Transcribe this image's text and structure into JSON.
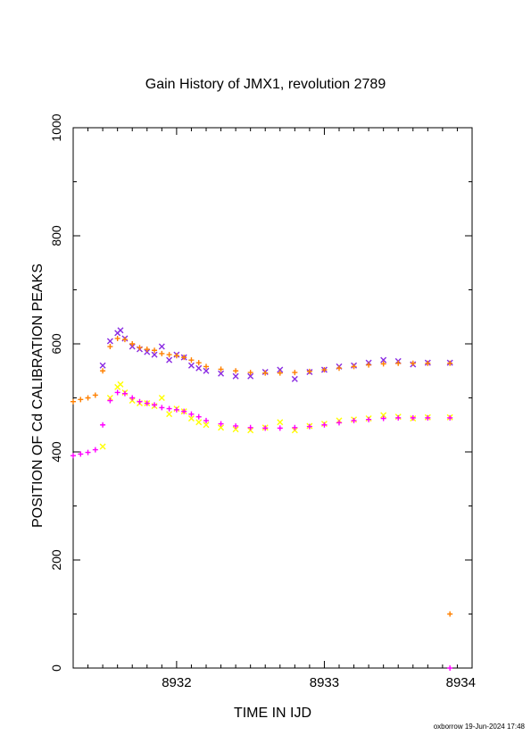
{
  "chart_data": {
    "type": "scatter",
    "title": "Gain History of JMX1, revolution 2789",
    "xlabel": "TIME IN IJD",
    "ylabel": "POSITION OF Cd CALIBRATION PEAKS",
    "xlim": [
      8931.3,
      8934.0
    ],
    "ylim": [
      0,
      1000
    ],
    "x_ticks": [
      "8932",
      "8933",
      "8934"
    ],
    "y_ticks": [
      "0",
      "200",
      "400",
      "600",
      "800",
      "1000"
    ],
    "grid": false,
    "series": [
      {
        "color": "#8a2be2",
        "marker": "x",
        "x": [
          8931.5,
          8931.55,
          8931.6,
          8931.62,
          8931.65,
          8931.7,
          8931.75,
          8931.8,
          8931.85,
          8931.9,
          8931.95,
          8932.0,
          8932.05,
          8932.1,
          8932.15,
          8932.2,
          8932.3,
          8932.4,
          8932.5,
          8932.6,
          8932.7,
          8932.8,
          8932.9,
          8933.0,
          8933.1,
          8933.2,
          8933.3,
          8933.4,
          8933.5,
          8933.6,
          8933.7,
          8933.85
        ],
        "y": [
          560,
          605,
          620,
          625,
          610,
          595,
          590,
          585,
          580,
          595,
          570,
          580,
          575,
          560,
          555,
          550,
          545,
          540,
          540,
          548,
          552,
          535,
          548,
          552,
          558,
          560,
          565,
          570,
          568,
          562,
          565,
          565
        ]
      },
      {
        "color": "#ff8000",
        "marker": "+",
        "x": [
          8931.3,
          8931.35,
          8931.4,
          8931.45,
          8931.5,
          8931.55,
          8931.6,
          8931.65,
          8931.7,
          8931.75,
          8931.8,
          8931.85,
          8931.9,
          8931.95,
          8932.0,
          8932.05,
          8932.1,
          8932.15,
          8932.2,
          8932.3,
          8932.4,
          8932.5,
          8932.6,
          8932.7,
          8932.8,
          8932.9,
          8933.0,
          8933.1,
          8933.2,
          8933.3,
          8933.4,
          8933.5,
          8933.6,
          8933.7,
          8933.85,
          8933.85
        ],
        "y": [
          493,
          497,
          500,
          505,
          550,
          595,
          610,
          608,
          600,
          593,
          590,
          588,
          582,
          580,
          578,
          575,
          570,
          565,
          558,
          553,
          550,
          547,
          546,
          546,
          547,
          549,
          552,
          555,
          558,
          561,
          563,
          564,
          564,
          564,
          564,
          100
        ]
      },
      {
        "color": "#ffff00",
        "marker": "x",
        "x": [
          8931.5,
          8931.55,
          8931.6,
          8931.62,
          8931.65,
          8931.7,
          8931.75,
          8931.8,
          8931.85,
          8931.9,
          8931.95,
          8932.0,
          8932.05,
          8932.1,
          8932.15,
          8932.2,
          8932.3,
          8932.4,
          8932.5,
          8932.6,
          8932.7,
          8932.8,
          8932.9,
          8933.0,
          8933.1,
          8933.2,
          8933.3,
          8933.4,
          8933.5,
          8933.6,
          8933.7,
          8933.85
        ],
        "y": [
          410,
          500,
          520,
          525,
          510,
          495,
          490,
          490,
          485,
          500,
          470,
          480,
          475,
          462,
          455,
          450,
          445,
          442,
          440,
          445,
          455,
          440,
          448,
          452,
          458,
          460,
          462,
          468,
          465,
          462,
          464,
          464
        ]
      },
      {
        "color": "#ff00ff",
        "marker": "+",
        "x": [
          8931.3,
          8931.35,
          8931.4,
          8931.45,
          8931.5,
          8931.55,
          8931.6,
          8931.65,
          8931.7,
          8931.75,
          8931.8,
          8931.85,
          8931.9,
          8931.95,
          8932.0,
          8932.05,
          8932.1,
          8932.15,
          8932.2,
          8932.3,
          8932.4,
          8932.5,
          8932.6,
          8932.7,
          8932.8,
          8932.9,
          8933.0,
          8933.1,
          8933.2,
          8933.3,
          8933.4,
          8933.5,
          8933.6,
          8933.7,
          8933.85,
          8933.85
        ],
        "y": [
          393,
          396,
          399,
          404,
          450,
          495,
          510,
          508,
          500,
          493,
          490,
          487,
          482,
          480,
          478,
          475,
          470,
          465,
          458,
          452,
          448,
          445,
          444,
          444,
          445,
          447,
          450,
          454,
          458,
          460,
          462,
          463,
          463,
          463,
          463,
          0
        ]
      }
    ]
  },
  "footer": "oxborrow 19-Jun-2024 17:48"
}
